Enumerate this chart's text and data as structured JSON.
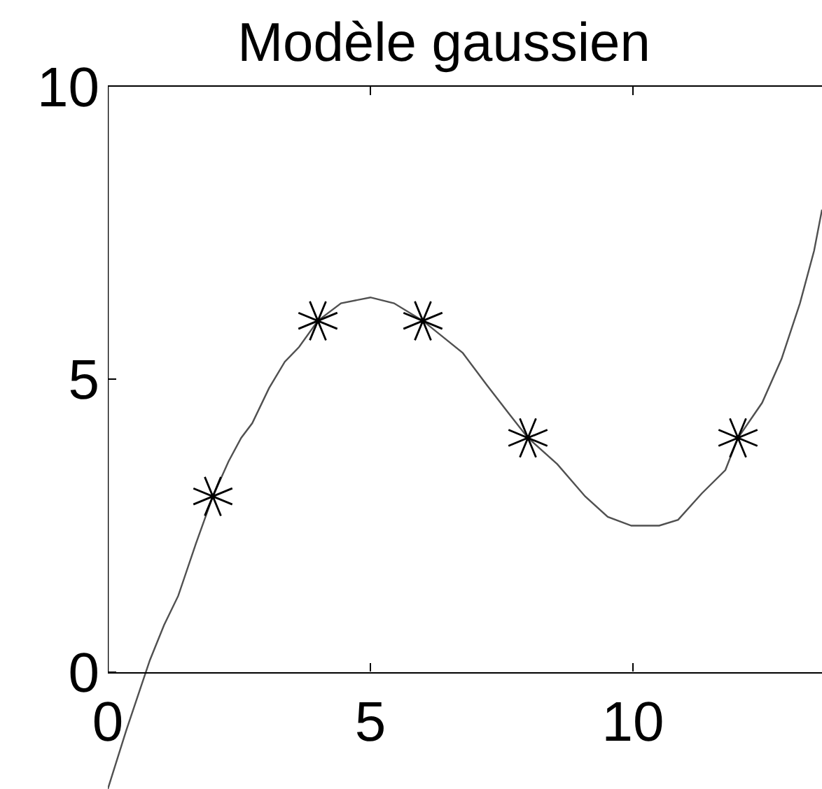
{
  "chart_data": {
    "type": "line",
    "title": "Modèle gaussien",
    "xlim": [
      0,
      13.6
    ],
    "ylim": [
      -2,
      10
    ],
    "xticks": [
      0,
      5,
      10
    ],
    "yticks": [
      0,
      5,
      10
    ],
    "series": [
      {
        "color": "#505050",
        "marker": "none",
        "x": [
          0.0,
          0.35,
          0.8,
          1.07,
          1.34,
          1.68,
          2.0,
          2.3,
          2.54,
          2.75,
          3.07,
          3.37,
          3.64,
          4.0,
          4.44,
          5.0,
          5.45,
          6.0,
          6.76,
          7.22,
          7.65,
          8.0,
          8.56,
          9.09,
          9.52,
          9.97,
          10.5,
          10.86,
          11.31,
          11.76,
          12.0,
          12.46,
          12.83,
          13.18,
          13.45,
          13.6
        ],
        "values": [
          -2.0,
          -1.0,
          0.2,
          0.8,
          1.3,
          2.2,
          3.0,
          3.6,
          4.0,
          4.25,
          4.85,
          5.3,
          5.55,
          6.0,
          6.3,
          6.4,
          6.3,
          6.0,
          5.45,
          4.9,
          4.4,
          4.0,
          3.55,
          3.0,
          2.65,
          2.5,
          2.5,
          2.6,
          3.05,
          3.45,
          4.0,
          4.6,
          5.35,
          6.3,
          7.2,
          7.9
        ]
      },
      {
        "type": "scatter",
        "color": "#000000",
        "marker": "cross",
        "x": [
          2,
          4,
          6,
          8,
          12
        ],
        "values": [
          3,
          6,
          6,
          4,
          4
        ]
      }
    ]
  }
}
